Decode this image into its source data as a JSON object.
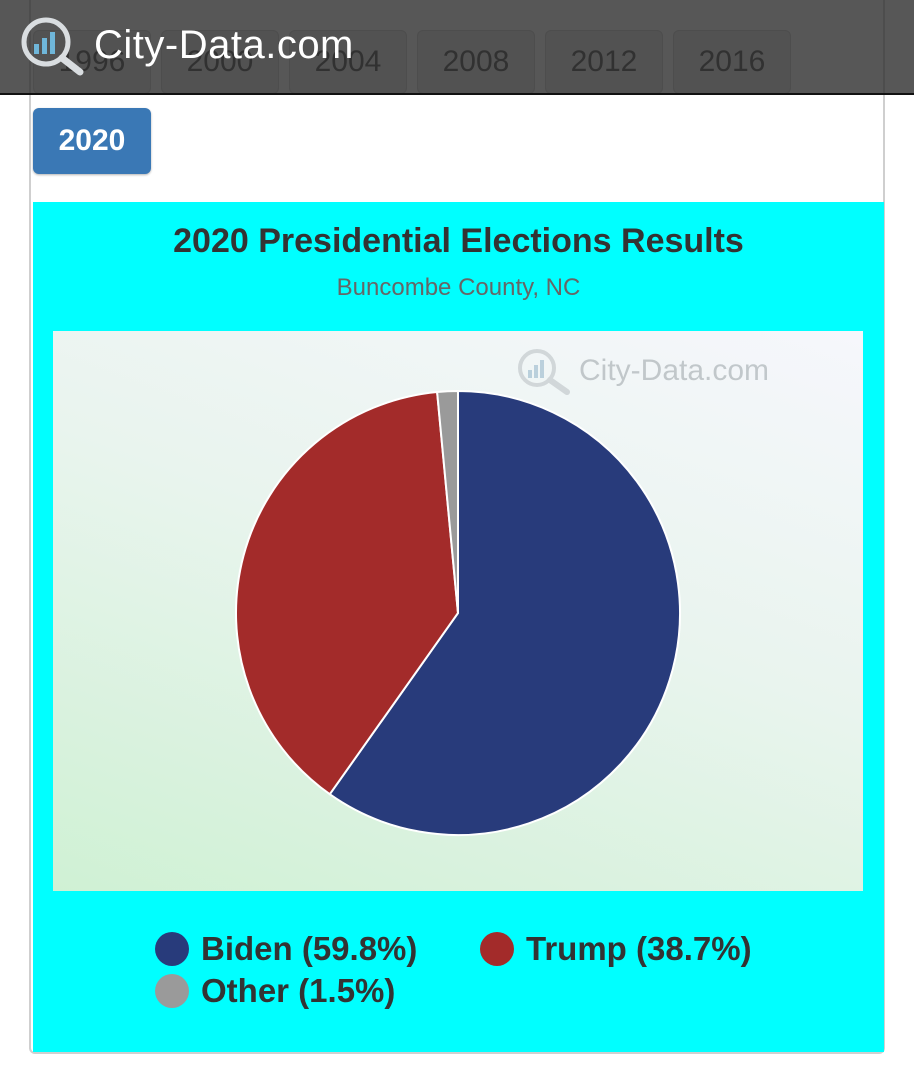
{
  "header": {
    "logo_text": "City-Data.com"
  },
  "years": {
    "buttons": [
      "1996",
      "2000",
      "2004",
      "2008",
      "2012",
      "2016"
    ],
    "active": "2020"
  },
  "watermark": "City-Data.com",
  "chart_data": {
    "type": "pie",
    "title": "2020 Presidential Elections Results",
    "subtitle": "Buncombe County, NC",
    "legend_position": "bottom",
    "categories": [
      "Biden",
      "Trump",
      "Other"
    ],
    "values": [
      59.8,
      38.7,
      1.5
    ],
    "colors": [
      "#283b7b",
      "#a32b2a",
      "#9a9a9a"
    ],
    "legend_labels": [
      "Biden (59.8%)",
      "Trump (38.7%)",
      "Other (1.5%)"
    ]
  }
}
